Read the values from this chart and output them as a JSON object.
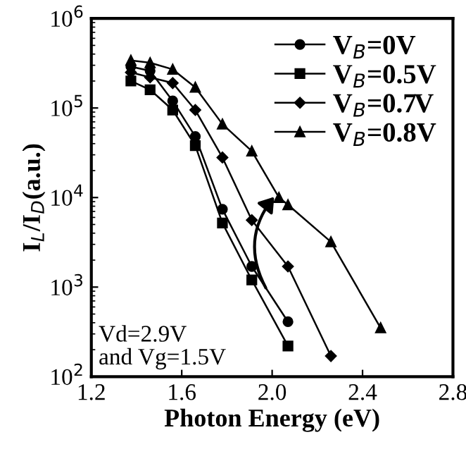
{
  "chart_data": {
    "type": "line",
    "xlabel": "Photon Energy (eV)",
    "ylabel": "I$_{L}$/I$_{D}$(a.u.)",
    "log": "y",
    "xlim": [
      1.2,
      2.8
    ],
    "xticks": [
      {
        "value": 1.2,
        "label": "1.2"
      },
      {
        "value": 1.6,
        "label": "1.6"
      },
      {
        "value": 2.0,
        "label": "2.0"
      },
      {
        "value": 2.4,
        "label": "2.4"
      },
      {
        "value": 2.8,
        "label": "2.8"
      }
    ],
    "ylim": [
      100,
      1000000
    ],
    "yticks": [
      {
        "value": 100,
        "label": "10$^{2}$"
      },
      {
        "value": 1000,
        "label": "10$^{3}$"
      },
      {
        "value": 10000,
        "label": "10$^{4}$"
      },
      {
        "value": 100000,
        "label": "10$^{5}$"
      },
      {
        "value": 1000000,
        "label": "10$^{6}$"
      }
    ],
    "legend": "top right",
    "grid": false,
    "line_style": "solid",
    "series": [
      {
        "name": "V$_{B}$=0V",
        "color": "#000000",
        "marker": "circle",
        "x": [
          1.375,
          1.46,
          1.56,
          1.66,
          1.78,
          1.91,
          2.07
        ],
        "values": [
          290000,
          260000,
          120000,
          48000,
          7400,
          1700,
          410
        ]
      },
      {
        "name": "V$_{B}$=0.5V",
        "color": "#000000",
        "marker": "square",
        "x": [
          1.375,
          1.46,
          1.56,
          1.66,
          1.78,
          1.91,
          2.07
        ],
        "values": [
          200000,
          160000,
          95000,
          38000,
          5200,
          1200,
          220
        ]
      },
      {
        "name": "V$_{B}$=0.7V",
        "color": "#000000",
        "marker": "diamond",
        "x": [
          1.375,
          1.46,
          1.56,
          1.66,
          1.78,
          1.91,
          2.07,
          2.26
        ],
        "values": [
          250000,
          220000,
          190000,
          95000,
          28000,
          5600,
          1700,
          170
        ]
      },
      {
        "name": "V$_{B}$=0.8V",
        "color": "#000000",
        "marker": "triangle",
        "x": [
          1.375,
          1.46,
          1.56,
          1.66,
          1.78,
          1.91,
          2.03,
          2.07,
          2.26,
          2.48
        ],
        "values": [
          340000,
          320000,
          270000,
          170000,
          66000,
          33000,
          10000,
          8300,
          3200,
          350
        ]
      }
    ],
    "annotations": [
      "Vd=2.9V\nand Vg=1.5V"
    ]
  }
}
